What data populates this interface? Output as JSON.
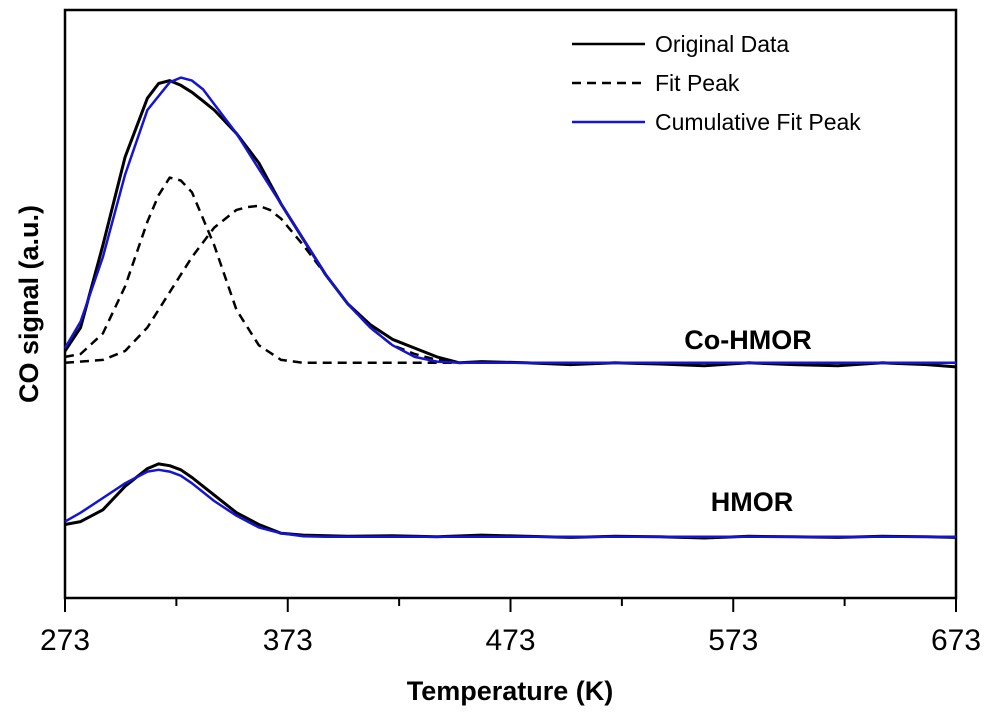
{
  "chart_data": {
    "type": "line",
    "title": "",
    "xlabel": "Temperature (K)",
    "ylabel": "CO signal (a.u.)",
    "xlim": [
      273,
      673
    ],
    "ylim": [
      0,
      1
    ],
    "xticks": [
      "273",
      "373",
      "473",
      "573",
      "673"
    ],
    "minor_x_step": 50,
    "y_tick_labels": false,
    "grid": false,
    "legend": {
      "position": "top-right",
      "entries": [
        {
          "label": "Original Data",
          "style": "solid",
          "color": "#000000"
        },
        {
          "label": "Fit Peak",
          "style": "dashed",
          "color": "#000000"
        },
        {
          "label": "Cumulative Fit Peak",
          "style": "solid",
          "color": "#1414d2"
        }
      ]
    },
    "annotations": [
      {
        "text": "Co-HMOR",
        "x": 550,
        "y": 0.45
      },
      {
        "text": "HMOR",
        "x": 556,
        "y": 0.165
      }
    ],
    "series": [
      {
        "name": "Original Data",
        "sample": "Co-HMOR",
        "style": "solid",
        "color": "#000000",
        "x": [
          273,
          280,
          290,
          300,
          310,
          315,
          320,
          325,
          330,
          335,
          340,
          350,
          360,
          370,
          380,
          390,
          400,
          410,
          420,
          430,
          440,
          450,
          460,
          480,
          500,
          520,
          540,
          560,
          580,
          600,
          620,
          640,
          660,
          673
        ],
        "y": [
          0.42,
          0.46,
          0.6,
          0.75,
          0.85,
          0.875,
          0.88,
          0.872,
          0.86,
          0.845,
          0.83,
          0.79,
          0.74,
          0.67,
          0.61,
          0.55,
          0.5,
          0.465,
          0.44,
          0.425,
          0.41,
          0.4,
          0.402,
          0.4,
          0.397,
          0.4,
          0.398,
          0.395,
          0.4,
          0.397,
          0.395,
          0.4,
          0.397,
          0.393
        ]
      },
      {
        "name": "Fit Peak",
        "sample": "Co-HMOR",
        "style": "dashed",
        "color": "#000000",
        "x": [
          273,
          280,
          290,
          300,
          310,
          315,
          320,
          325,
          330,
          340,
          350,
          360,
          370,
          380,
          390,
          400,
          410,
          420,
          440,
          673
        ],
        "y": [
          0.41,
          0.415,
          0.45,
          0.53,
          0.64,
          0.685,
          0.715,
          0.71,
          0.69,
          0.6,
          0.49,
          0.43,
          0.405,
          0.4,
          0.4,
          0.4,
          0.4,
          0.4,
          0.4,
          0.4
        ]
      },
      {
        "name": "Fit Peak",
        "sample": "Co-HMOR",
        "style": "dashed",
        "color": "#000000",
        "x": [
          273,
          290,
          300,
          310,
          320,
          330,
          340,
          350,
          355,
          360,
          365,
          370,
          380,
          390,
          400,
          410,
          420,
          430,
          440,
          450,
          460,
          673
        ],
        "y": [
          0.4,
          0.405,
          0.42,
          0.46,
          0.52,
          0.58,
          0.63,
          0.66,
          0.665,
          0.667,
          0.66,
          0.645,
          0.6,
          0.55,
          0.5,
          0.46,
          0.43,
          0.415,
          0.405,
          0.4,
          0.4,
          0.4
        ]
      },
      {
        "name": "Cumulative Fit Peak",
        "sample": "Co-HMOR",
        "style": "solid",
        "color": "#1414d2",
        "x": [
          273,
          280,
          290,
          300,
          310,
          320,
          325,
          330,
          335,
          340,
          350,
          360,
          370,
          380,
          390,
          400,
          410,
          420,
          430,
          440,
          450,
          460,
          673
        ],
        "y": [
          0.425,
          0.47,
          0.58,
          0.72,
          0.83,
          0.877,
          0.885,
          0.88,
          0.865,
          0.84,
          0.79,
          0.73,
          0.67,
          0.61,
          0.55,
          0.5,
          0.46,
          0.43,
          0.41,
          0.402,
          0.4,
          0.4,
          0.4
        ]
      },
      {
        "name": "Original Data",
        "sample": "HMOR",
        "style": "solid",
        "color": "#000000",
        "x": [
          273,
          280,
          290,
          300,
          310,
          315,
          320,
          325,
          330,
          335,
          340,
          350,
          360,
          370,
          380,
          400,
          420,
          440,
          460,
          480,
          500,
          520,
          540,
          560,
          580,
          600,
          620,
          640,
          660,
          673
        ],
        "y": [
          0.125,
          0.13,
          0.15,
          0.19,
          0.22,
          0.228,
          0.225,
          0.218,
          0.205,
          0.19,
          0.175,
          0.145,
          0.125,
          0.11,
          0.107,
          0.105,
          0.106,
          0.104,
          0.107,
          0.105,
          0.103,
          0.105,
          0.104,
          0.102,
          0.105,
          0.104,
          0.103,
          0.105,
          0.104,
          0.103
        ]
      },
      {
        "name": "Cumulative Fit Peak",
        "sample": "HMOR",
        "style": "solid",
        "color": "#1414d2",
        "x": [
          273,
          280,
          290,
          300,
          310,
          315,
          320,
          325,
          330,
          340,
          350,
          360,
          370,
          380,
          390,
          400,
          673
        ],
        "y": [
          0.13,
          0.145,
          0.17,
          0.195,
          0.215,
          0.218,
          0.215,
          0.208,
          0.195,
          0.165,
          0.14,
          0.12,
          0.11,
          0.105,
          0.104,
          0.104,
          0.104
        ]
      }
    ]
  }
}
